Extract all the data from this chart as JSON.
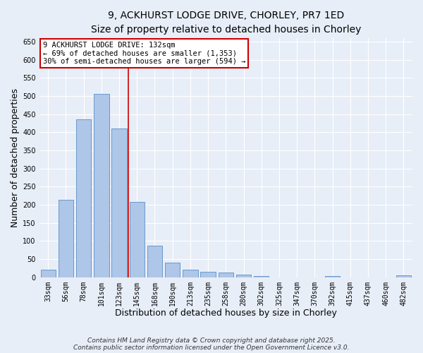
{
  "title_line1": "9, ACKHURST LODGE DRIVE, CHORLEY, PR7 1ED",
  "title_line2": "Size of property relative to detached houses in Chorley",
  "xlabel": "Distribution of detached houses by size in Chorley",
  "ylabel": "Number of detached properties",
  "categories": [
    "33sqm",
    "56sqm",
    "78sqm",
    "101sqm",
    "123sqm",
    "145sqm",
    "168sqm",
    "190sqm",
    "213sqm",
    "235sqm",
    "258sqm",
    "280sqm",
    "302sqm",
    "325sqm",
    "347sqm",
    "370sqm",
    "392sqm",
    "415sqm",
    "437sqm",
    "460sqm",
    "482sqm"
  ],
  "values": [
    20,
    213,
    435,
    505,
    410,
    207,
    87,
    40,
    20,
    16,
    13,
    7,
    3,
    0,
    0,
    0,
    4,
    0,
    0,
    0,
    5
  ],
  "bar_color": "#aec6e8",
  "bar_edge_color": "#5a8fc4",
  "red_line_color": "#cc0000",
  "red_line_x": 4.5,
  "annotation_text_line1": "9 ACKHURST LODGE DRIVE: 132sqm",
  "annotation_text_line2": "← 69% of detached houses are smaller (1,353)",
  "annotation_text_line3": "30% of semi-detached houses are larger (594) →",
  "annotation_font_size": 7.5,
  "annotation_box_color": "#ffffff",
  "annotation_border_color": "#cc0000",
  "ylim": [
    0,
    660
  ],
  "yticks": [
    0,
    50,
    100,
    150,
    200,
    250,
    300,
    350,
    400,
    450,
    500,
    550,
    600,
    650
  ],
  "background_color": "#e8eef8",
  "grid_color": "#ffffff",
  "footnote_line1": "Contains HM Land Registry data © Crown copyright and database right 2025.",
  "footnote_line2": "Contains public sector information licensed under the Open Government Licence v3.0.",
  "title_fontsize": 10,
  "subtitle_fontsize": 9,
  "axis_label_fontsize": 9,
  "tick_fontsize": 7,
  "footnote_fontsize": 6.5
}
